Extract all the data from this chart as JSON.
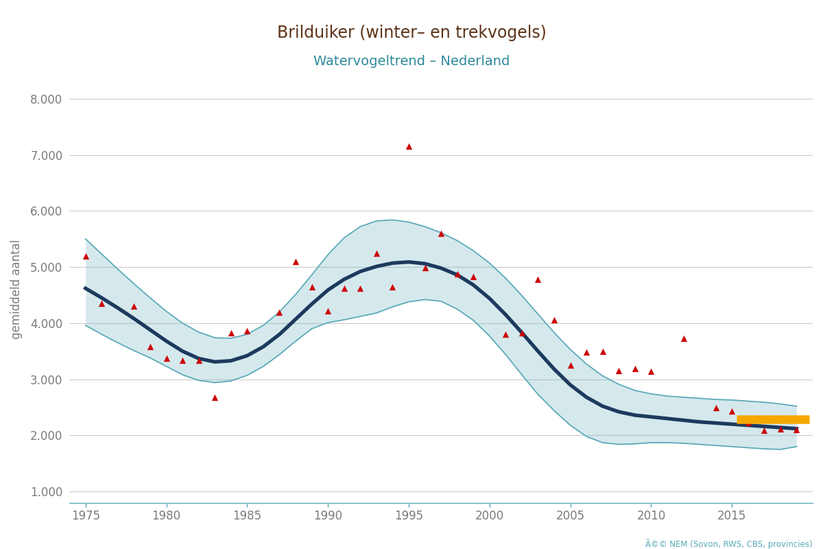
{
  "title": "Brilduiker (winter– en trekvogels)",
  "subtitle": "Watervogeltrend – Nederland",
  "ylabel": "gemiddeld aantal",
  "title_color": "#5C3317",
  "subtitle_color": "#2E8B9A",
  "ylabel_color": "#7B7B7B",
  "tick_color": "#7B7B7B",
  "background_color": "#FFFFFF",
  "grid_color": "#CCCCCC",
  "trend_color": "#1C3A5E",
  "ci_color": "#5BAAB8",
  "ci_fill_alpha": 0.25,
  "point_color": "#CC0000",
  "orange_bar_color": "#F5A800",
  "copyright_text": "Ã©© NEM (Sovon, RWS, CBS, provincies)",
  "xlim": [
    1974,
    2020
  ],
  "ylim": [
    800,
    8400
  ],
  "yticks": [
    1000,
    2000,
    3000,
    4000,
    5000,
    6000,
    7000,
    8000
  ],
  "xticks": [
    1975,
    1980,
    1985,
    1990,
    1995,
    2000,
    2005,
    2010,
    2015
  ],
  "scatter_points": [
    [
      1975,
      5200
    ],
    [
      1976,
      4350
    ],
    [
      1978,
      4300
    ],
    [
      1979,
      3580
    ],
    [
      1980,
      3370
    ],
    [
      1981,
      3340
    ],
    [
      1982,
      3340
    ],
    [
      1983,
      2680
    ],
    [
      1984,
      3830
    ],
    [
      1985,
      3860
    ],
    [
      1987,
      4200
    ],
    [
      1988,
      5100
    ],
    [
      1989,
      4650
    ],
    [
      1990,
      4220
    ],
    [
      1991,
      4620
    ],
    [
      1992,
      4620
    ],
    [
      1993,
      5250
    ],
    [
      1994,
      4650
    ],
    [
      1995,
      7150
    ],
    [
      1996,
      4990
    ],
    [
      1997,
      5600
    ],
    [
      1998,
      4880
    ],
    [
      1999,
      4830
    ],
    [
      2001,
      3800
    ],
    [
      2002,
      3830
    ],
    [
      2003,
      4780
    ],
    [
      2004,
      4060
    ],
    [
      2005,
      3250
    ],
    [
      2006,
      3480
    ],
    [
      2007,
      3500
    ],
    [
      2008,
      3150
    ],
    [
      2009,
      3190
    ],
    [
      2010,
      3145
    ],
    [
      2012,
      3730
    ],
    [
      2014,
      2500
    ],
    [
      2015,
      2430
    ],
    [
      2016,
      2220
    ],
    [
      2017,
      2090
    ],
    [
      2018,
      2120
    ],
    [
      2019,
      2100
    ]
  ],
  "trend_line": [
    [
      1975,
      4620
    ],
    [
      1976,
      4450
    ],
    [
      1977,
      4270
    ],
    [
      1978,
      4080
    ],
    [
      1979,
      3880
    ],
    [
      1980,
      3680
    ],
    [
      1981,
      3500
    ],
    [
      1982,
      3370
    ],
    [
      1983,
      3310
    ],
    [
      1984,
      3330
    ],
    [
      1985,
      3420
    ],
    [
      1986,
      3580
    ],
    [
      1987,
      3800
    ],
    [
      1988,
      4070
    ],
    [
      1989,
      4340
    ],
    [
      1990,
      4590
    ],
    [
      1991,
      4780
    ],
    [
      1992,
      4920
    ],
    [
      1993,
      5010
    ],
    [
      1994,
      5070
    ],
    [
      1995,
      5090
    ],
    [
      1996,
      5060
    ],
    [
      1997,
      4980
    ],
    [
      1998,
      4860
    ],
    [
      1999,
      4680
    ],
    [
      2000,
      4440
    ],
    [
      2001,
      4150
    ],
    [
      2002,
      3830
    ],
    [
      2003,
      3500
    ],
    [
      2004,
      3180
    ],
    [
      2005,
      2900
    ],
    [
      2006,
      2680
    ],
    [
      2007,
      2520
    ],
    [
      2008,
      2420
    ],
    [
      2009,
      2360
    ],
    [
      2010,
      2330
    ],
    [
      2011,
      2300
    ],
    [
      2012,
      2270
    ],
    [
      2013,
      2240
    ],
    [
      2014,
      2220
    ],
    [
      2015,
      2200
    ],
    [
      2016,
      2180
    ],
    [
      2017,
      2160
    ],
    [
      2018,
      2140
    ],
    [
      2019,
      2120
    ]
  ],
  "ci_upper": [
    [
      1975,
      5500
    ],
    [
      1976,
      5230
    ],
    [
      1977,
      4960
    ],
    [
      1978,
      4700
    ],
    [
      1979,
      4450
    ],
    [
      1980,
      4210
    ],
    [
      1981,
      4000
    ],
    [
      1982,
      3840
    ],
    [
      1983,
      3740
    ],
    [
      1984,
      3730
    ],
    [
      1985,
      3800
    ],
    [
      1986,
      3960
    ],
    [
      1987,
      4200
    ],
    [
      1988,
      4510
    ],
    [
      1989,
      4860
    ],
    [
      1990,
      5220
    ],
    [
      1991,
      5520
    ],
    [
      1992,
      5720
    ],
    [
      1993,
      5820
    ],
    [
      1994,
      5840
    ],
    [
      1995,
      5800
    ],
    [
      1996,
      5720
    ],
    [
      1997,
      5610
    ],
    [
      1998,
      5470
    ],
    [
      1999,
      5290
    ],
    [
      2000,
      5070
    ],
    [
      2001,
      4800
    ],
    [
      2002,
      4490
    ],
    [
      2003,
      4160
    ],
    [
      2004,
      3830
    ],
    [
      2005,
      3530
    ],
    [
      2006,
      3270
    ],
    [
      2007,
      3060
    ],
    [
      2008,
      2910
    ],
    [
      2009,
      2800
    ],
    [
      2010,
      2740
    ],
    [
      2011,
      2700
    ],
    [
      2012,
      2680
    ],
    [
      2013,
      2660
    ],
    [
      2014,
      2640
    ],
    [
      2015,
      2630
    ],
    [
      2016,
      2610
    ],
    [
      2017,
      2590
    ],
    [
      2018,
      2560
    ],
    [
      2019,
      2520
    ]
  ],
  "ci_lower": [
    [
      1975,
      3960
    ],
    [
      1976,
      3800
    ],
    [
      1977,
      3650
    ],
    [
      1978,
      3510
    ],
    [
      1979,
      3380
    ],
    [
      1980,
      3230
    ],
    [
      1981,
      3080
    ],
    [
      1982,
      2980
    ],
    [
      1983,
      2940
    ],
    [
      1984,
      2970
    ],
    [
      1985,
      3070
    ],
    [
      1986,
      3230
    ],
    [
      1987,
      3440
    ],
    [
      1988,
      3680
    ],
    [
      1989,
      3900
    ],
    [
      1990,
      4010
    ],
    [
      1991,
      4060
    ],
    [
      1992,
      4120
    ],
    [
      1993,
      4180
    ],
    [
      1994,
      4290
    ],
    [
      1995,
      4380
    ],
    [
      1996,
      4420
    ],
    [
      1997,
      4390
    ],
    [
      1998,
      4250
    ],
    [
      1999,
      4050
    ],
    [
      2000,
      3770
    ],
    [
      2001,
      3440
    ],
    [
      2002,
      3080
    ],
    [
      2003,
      2730
    ],
    [
      2004,
      2440
    ],
    [
      2005,
      2180
    ],
    [
      2006,
      1980
    ],
    [
      2007,
      1870
    ],
    [
      2008,
      1840
    ],
    [
      2009,
      1850
    ],
    [
      2010,
      1870
    ],
    [
      2011,
      1870
    ],
    [
      2012,
      1860
    ],
    [
      2013,
      1840
    ],
    [
      2014,
      1820
    ],
    [
      2015,
      1800
    ],
    [
      2016,
      1780
    ],
    [
      2017,
      1760
    ],
    [
      2018,
      1750
    ],
    [
      2019,
      1800
    ]
  ],
  "orange_bar_x_start": 2015.3,
  "orange_bar_x_end": 2019.8,
  "orange_bar_y": 2290,
  "orange_bar_linewidth": 9
}
